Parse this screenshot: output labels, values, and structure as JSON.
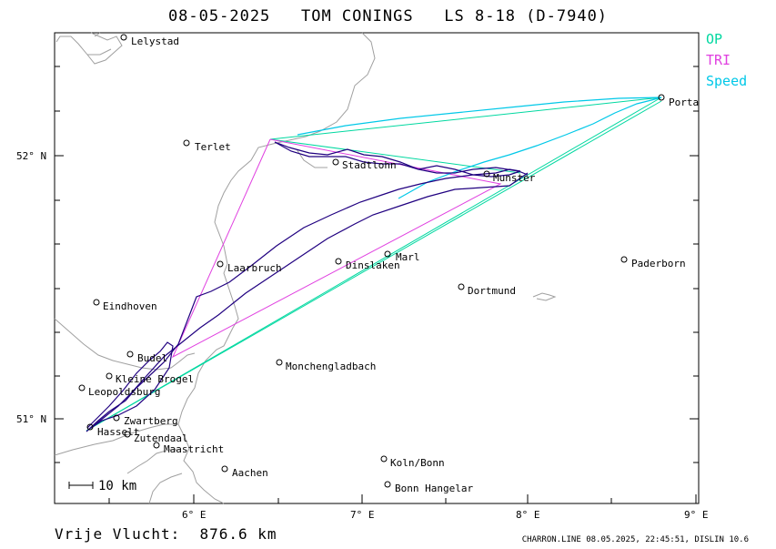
{
  "title": "08-05-2025   TOM CONINGS   LS 8-18 (D-7940)",
  "legend": [
    {
      "label": "OP",
      "color": "#00d8a0"
    },
    {
      "label": "TRI",
      "color": "#e040e0"
    },
    {
      "label": "Speed",
      "color": "#00c8e8"
    }
  ],
  "axes": {
    "lat_labels": [
      "52° N",
      "51° N"
    ],
    "lon_labels": [
      "6° E",
      "7° E",
      "8° E",
      "9° E"
    ]
  },
  "scale_label": "10 km",
  "towns": [
    {
      "name": "Lelystad"
    },
    {
      "name": "Terlet"
    },
    {
      "name": "Stadtlohn"
    },
    {
      "name": "Porta"
    },
    {
      "name": "Munster"
    },
    {
      "name": "Marl"
    },
    {
      "name": "Dinslaken"
    },
    {
      "name": "Laarbruch"
    },
    {
      "name": "Paderborn"
    },
    {
      "name": "Dortmund"
    },
    {
      "name": "Eindhoven"
    },
    {
      "name": "Budel"
    },
    {
      "name": "Kleine Brogel"
    },
    {
      "name": "Leopoldsburg"
    },
    {
      "name": "Zwartberg"
    },
    {
      "name": "Hasselt"
    },
    {
      "name": "Zutendaal"
    },
    {
      "name": "Maastricht"
    },
    {
      "name": "Monchengladbach"
    },
    {
      "name": "Aachen"
    },
    {
      "name": "Koln/Bonn"
    },
    {
      "name": "Bonn Hangelar"
    }
  ],
  "distance": "Vrije Vlucht:  876.6 km",
  "info": "CHARRON.LINE 08.05.2025, 22:45:51, DISLIN 10.6",
  "colors": {
    "track": "#200080",
    "border": "#a0a0a0"
  }
}
